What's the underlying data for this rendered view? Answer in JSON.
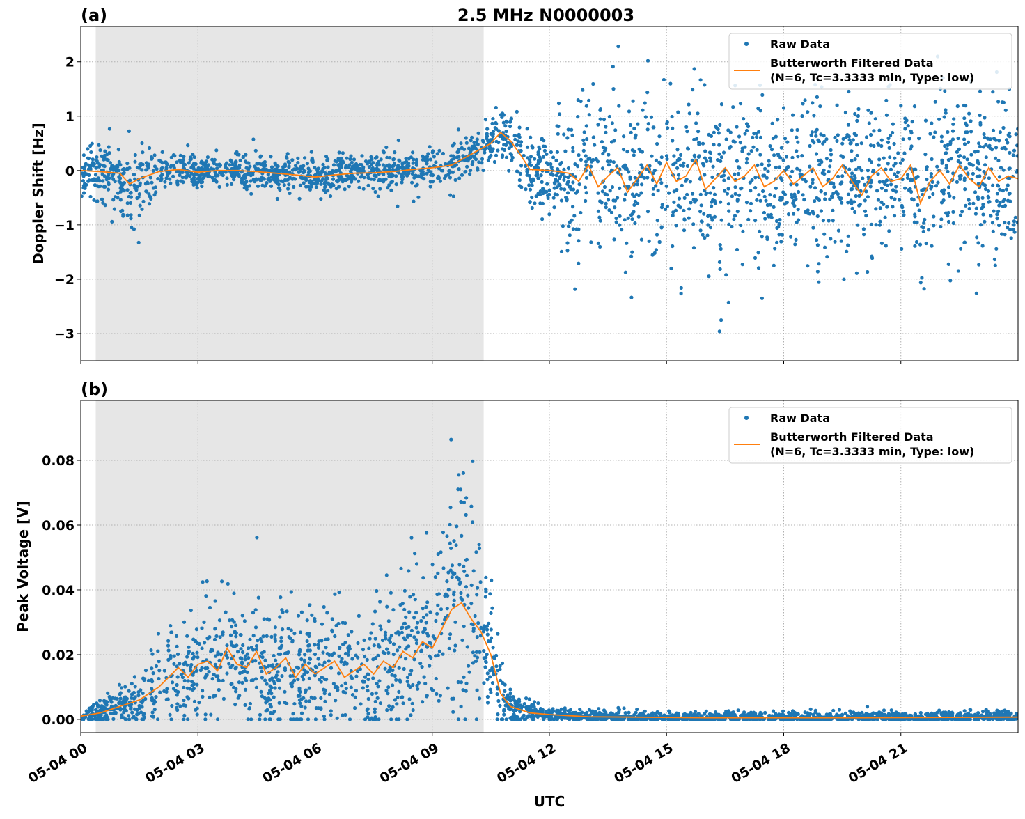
{
  "title": "2.5 MHz N0000003",
  "colors": {
    "raw": "#1f77b4",
    "filtered": "#ff7f0e",
    "shade": "#e6e6e6"
  },
  "x_axis": {
    "label": "UTC",
    "date": "05-04",
    "range_hours": [
      0,
      24
    ],
    "ticks": [
      {
        "hour": 0,
        "label": "05-04 00"
      },
      {
        "hour": 3,
        "label": "05-04 03"
      },
      {
        "hour": 6,
        "label": "05-04 06"
      },
      {
        "hour": 9,
        "label": "05-04 09"
      },
      {
        "hour": 12,
        "label": "05-04 12"
      },
      {
        "hour": 15,
        "label": "05-04 15"
      },
      {
        "hour": 18,
        "label": "05-04 18"
      },
      {
        "hour": 21,
        "label": "05-04 21"
      }
    ],
    "shaded_interval": [
      "00:23",
      "10:19"
    ]
  },
  "legend": {
    "raw_label": "Raw Data",
    "filtered_label_1": "Butterworth Filtered Data",
    "filtered_label_2": "(N=6, Tc=3.3333 min, Type: low)",
    "placement": "upper-right"
  },
  "chart_data": [
    {
      "type": "scatter+line",
      "panel_label": "(a)",
      "ylabel": "Doppler Shift [Hz]",
      "ylim": [
        -3.5,
        2.65
      ],
      "grid": true,
      "yticks": [
        {
          "v": 2,
          "label": "2"
        },
        {
          "v": 1,
          "label": "1"
        },
        {
          "v": 0,
          "label": "0"
        },
        {
          "v": -1,
          "label": "−1"
        },
        {
          "v": -2,
          "label": "−2"
        },
        {
          "v": -3,
          "label": "−3"
        }
      ],
      "filtered": [
        [
          "00:00",
          0
        ],
        [
          "00:30",
          -0.02
        ],
        [
          "01:00",
          -0.05
        ],
        [
          "01:15",
          -0.25
        ],
        [
          "01:30",
          -0.15
        ],
        [
          "02:00",
          -0.02
        ],
        [
          "02:30",
          0.02
        ],
        [
          "03:00",
          -0.03
        ],
        [
          "03:30",
          0.0
        ],
        [
          "04:00",
          0.0
        ],
        [
          "04:30",
          -0.02
        ],
        [
          "05:00",
          -0.05
        ],
        [
          "05:30",
          -0.08
        ],
        [
          "06:00",
          -0.12
        ],
        [
          "06:30",
          -0.08
        ],
        [
          "07:00",
          -0.05
        ],
        [
          "07:30",
          -0.04
        ],
        [
          "08:00",
          -0.02
        ],
        [
          "08:30",
          0.02
        ],
        [
          "09:00",
          0.05
        ],
        [
          "09:30",
          0.1
        ],
        [
          "10:00",
          0.3
        ],
        [
          "10:30",
          0.5
        ],
        [
          "10:45",
          0.7
        ],
        [
          "11:00",
          0.55
        ],
        [
          "11:15",
          0.3
        ],
        [
          "11:30",
          0.02
        ],
        [
          "12:00",
          0.0
        ],
        [
          "12:15",
          -0.02
        ],
        [
          "12:30",
          -0.05
        ],
        [
          "12:45",
          -0.2
        ],
        [
          "13:00",
          0.1
        ],
        [
          "13:15",
          -0.3
        ],
        [
          "13:30",
          -0.1
        ],
        [
          "13:45",
          0.05
        ],
        [
          "14:00",
          -0.4
        ],
        [
          "14:15",
          -0.15
        ],
        [
          "14:30",
          0.1
        ],
        [
          "14:45",
          -0.25
        ],
        [
          "15:00",
          0.15
        ],
        [
          "15:15",
          -0.2
        ],
        [
          "15:30",
          -0.1
        ],
        [
          "15:45",
          0.2
        ],
        [
          "16:00",
          -0.35
        ],
        [
          "16:15",
          -0.15
        ],
        [
          "16:30",
          0.05
        ],
        [
          "16:45",
          -0.2
        ],
        [
          "17:00",
          -0.1
        ],
        [
          "17:15",
          0.1
        ],
        [
          "17:30",
          -0.3
        ],
        [
          "17:45",
          -0.2
        ],
        [
          "18:00",
          0.0
        ],
        [
          "18:15",
          -0.25
        ],
        [
          "18:30",
          -0.1
        ],
        [
          "18:45",
          0.05
        ],
        [
          "19:00",
          -0.3
        ],
        [
          "19:15",
          -0.15
        ],
        [
          "19:30",
          0.1
        ],
        [
          "19:45",
          -0.2
        ],
        [
          "20:00",
          -0.45
        ],
        [
          "20:15",
          -0.1
        ],
        [
          "20:30",
          0.05
        ],
        [
          "20:45",
          -0.2
        ],
        [
          "21:00",
          -0.15
        ],
        [
          "21:15",
          0.1
        ],
        [
          "21:30",
          -0.6
        ],
        [
          "21:45",
          -0.2
        ],
        [
          "22:00",
          0.0
        ],
        [
          "22:15",
          -0.25
        ],
        [
          "22:30",
          0.1
        ],
        [
          "22:45",
          -0.15
        ],
        [
          "23:00",
          -0.3
        ],
        [
          "23:15",
          0.05
        ],
        [
          "23:30",
          -0.2
        ],
        [
          "23:45",
          -0.1
        ],
        [
          "24:00",
          -0.15
        ]
      ],
      "raw_spread": [
        [
          "00:00",
          0.3
        ],
        [
          "01:00",
          0.35
        ],
        [
          "01:20",
          0.6
        ],
        [
          "02:00",
          0.2
        ],
        [
          "10:00",
          0.22
        ],
        [
          "11:00",
          0.3
        ],
        [
          "12:00",
          0.5
        ],
        [
          "12:45",
          0.9
        ],
        [
          "24:00",
          0.9
        ]
      ]
    },
    {
      "type": "scatter+line",
      "panel_label": "(b)",
      "ylabel": "Peak Voltage [V]",
      "ylim": [
        -0.0041,
        0.0985
      ],
      "grid": true,
      "yticks": [
        {
          "v": 0,
          "label": "0.00"
        },
        {
          "v": 0.02,
          "label": "0.02"
        },
        {
          "v": 0.04,
          "label": "0.04"
        },
        {
          "v": 0.06,
          "label": "0.06"
        },
        {
          "v": 0.08,
          "label": "0.08"
        }
      ],
      "filtered": [
        [
          "00:00",
          0.001
        ],
        [
          "00:15",
          0.0015
        ],
        [
          "00:30",
          0.002
        ],
        [
          "00:45",
          0.003
        ],
        [
          "01:00",
          0.004
        ],
        [
          "01:15",
          0.005
        ],
        [
          "01:30",
          0.006
        ],
        [
          "01:45",
          0.008
        ],
        [
          "02:00",
          0.01
        ],
        [
          "02:15",
          0.013
        ],
        [
          "02:30",
          0.016
        ],
        [
          "02:45",
          0.013
        ],
        [
          "03:00",
          0.017
        ],
        [
          "03:15",
          0.018
        ],
        [
          "03:30",
          0.015
        ],
        [
          "03:45",
          0.022
        ],
        [
          "04:00",
          0.017
        ],
        [
          "04:15",
          0.016
        ],
        [
          "04:30",
          0.021
        ],
        [
          "04:45",
          0.014
        ],
        [
          "05:00",
          0.016
        ],
        [
          "05:15",
          0.019
        ],
        [
          "05:30",
          0.013
        ],
        [
          "05:45",
          0.017
        ],
        [
          "06:00",
          0.014
        ],
        [
          "06:15",
          0.016
        ],
        [
          "06:30",
          0.018
        ],
        [
          "06:45",
          0.013
        ],
        [
          "07:00",
          0.015
        ],
        [
          "07:15",
          0.017
        ],
        [
          "07:30",
          0.014
        ],
        [
          "07:45",
          0.018
        ],
        [
          "08:00",
          0.016
        ],
        [
          "08:15",
          0.021
        ],
        [
          "08:30",
          0.019
        ],
        [
          "08:45",
          0.024
        ],
        [
          "09:00",
          0.022
        ],
        [
          "09:15",
          0.028
        ],
        [
          "09:30",
          0.034
        ],
        [
          "09:45",
          0.036
        ],
        [
          "10:00",
          0.031
        ],
        [
          "10:15",
          0.027
        ],
        [
          "10:30",
          0.02
        ],
        [
          "10:45",
          0.008
        ],
        [
          "11:00",
          0.004
        ],
        [
          "11:30",
          0.002
        ],
        [
          "12:00",
          0.0015
        ],
        [
          "13:00",
          0.0008
        ],
        [
          "16:00",
          0.0005
        ],
        [
          "20:00",
          0.0005
        ],
        [
          "24:00",
          0.0007
        ]
      ],
      "raw_spread": [
        [
          "00:00",
          0.001
        ],
        [
          "01:30",
          0.004
        ],
        [
          "02:00",
          0.009
        ],
        [
          "09:00",
          0.012
        ],
        [
          "09:45",
          0.02
        ],
        [
          "10:30",
          0.012
        ],
        [
          "11:00",
          0.003
        ],
        [
          "12:00",
          0.001
        ],
        [
          "24:00",
          0.001
        ]
      ]
    }
  ]
}
